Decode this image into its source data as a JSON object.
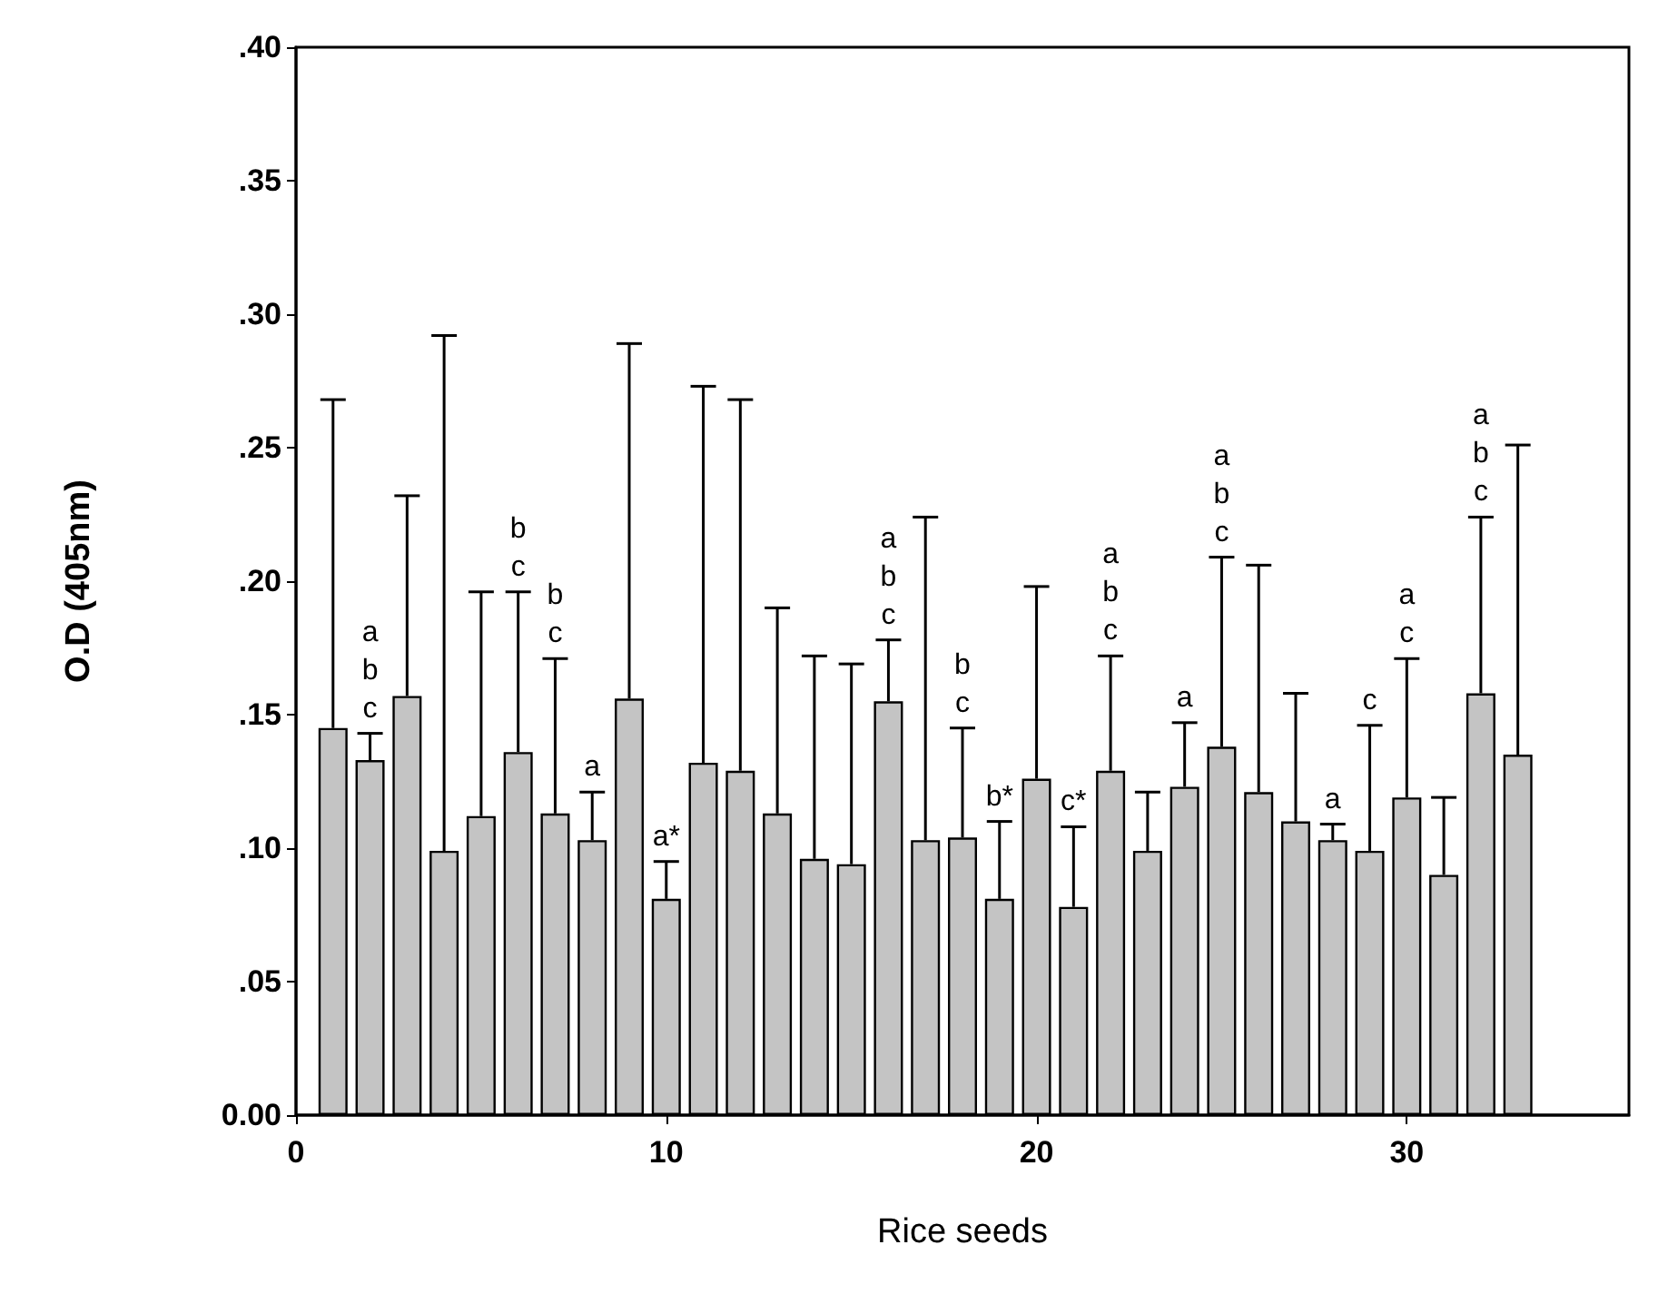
{
  "chart_data": {
    "type": "bar",
    "xlabel": "Rice seeds",
    "ylabel": "O.D (405nm)",
    "x": [
      1,
      2,
      3,
      4,
      5,
      6,
      7,
      8,
      9,
      10,
      11,
      12,
      13,
      14,
      15,
      16,
      17,
      18,
      19,
      20,
      21,
      22,
      23,
      24,
      25,
      26,
      27,
      28,
      29,
      30,
      31,
      32,
      33
    ],
    "values": [
      0.145,
      0.133,
      0.157,
      0.099,
      0.112,
      0.136,
      0.113,
      0.103,
      0.156,
      0.081,
      0.132,
      0.129,
      0.113,
      0.096,
      0.094,
      0.155,
      0.103,
      0.104,
      0.081,
      0.126,
      0.078,
      0.129,
      0.099,
      0.123,
      0.138,
      0.121,
      0.11,
      0.103,
      0.099,
      0.119,
      0.09,
      0.158,
      0.135
    ],
    "errors": [
      [
        0.145,
        0.268
      ],
      [
        0.133,
        0.143
      ],
      [
        0.157,
        0.232
      ],
      [
        0.099,
        0.292
      ],
      [
        0.112,
        0.196
      ],
      [
        0.136,
        0.196
      ],
      [
        0.113,
        0.171
      ],
      [
        0.103,
        0.121
      ],
      [
        0.156,
        0.289
      ],
      [
        0.081,
        0.095
      ],
      [
        0.132,
        0.273
      ],
      [
        0.129,
        0.268
      ],
      [
        0.113,
        0.19
      ],
      [
        0.096,
        0.172
      ],
      [
        0.094,
        0.169
      ],
      [
        0.155,
        0.178
      ],
      [
        0.103,
        0.224
      ],
      [
        0.104,
        0.145
      ],
      [
        0.081,
        0.11
      ],
      [
        0.126,
        0.198
      ],
      [
        0.078,
        0.108
      ],
      [
        0.129,
        0.172
      ],
      [
        0.099,
        0.121
      ],
      [
        0.123,
        0.147
      ],
      [
        0.138,
        0.209
      ],
      [
        0.121,
        0.206
      ],
      [
        0.11,
        0.158
      ],
      [
        0.103,
        0.109
      ],
      [
        0.099,
        0.146
      ],
      [
        0.119,
        0.171
      ],
      [
        0.09,
        0.119
      ],
      [
        0.158,
        0.224
      ],
      [
        0.135,
        0.251
      ]
    ],
    "color": "#c4c4c4",
    "xlim": [
      0,
      36
    ],
    "xticks": [
      0,
      10,
      20,
      30
    ],
    "ylim": [
      0,
      0.4
    ],
    "yticks": [
      {
        "value": 0,
        "label": "0.00"
      },
      {
        "value": 0.05,
        "label": ".05"
      },
      {
        "value": 0.1,
        "label": ".10"
      },
      {
        "value": 0.15,
        "label": ".15"
      },
      {
        "value": 0.2,
        "label": ".20"
      },
      {
        "value": 0.25,
        "label": ".25"
      },
      {
        "value": 0.3,
        "label": ".30"
      },
      {
        "value": 0.35,
        "label": ".35"
      },
      {
        "value": 0.4,
        "label": ".40"
      }
    ],
    "grid": false,
    "annotations": [
      {
        "text": "a\nb\nc",
        "x": 2,
        "y": 0.143
      },
      {
        "text": "b\nc",
        "x": 6,
        "y": 0.196
      },
      {
        "text": "b\nc",
        "x": 7,
        "y": 0.171
      },
      {
        "text": "a",
        "x": 8,
        "y": 0.121
      },
      {
        "text": "a*",
        "x": 10,
        "y": 0.095
      },
      {
        "text": "a\nb\nc",
        "x": 16,
        "y": 0.178
      },
      {
        "text": "b\nc",
        "x": 18,
        "y": 0.145
      },
      {
        "text": "b*",
        "x": 19,
        "y": 0.11
      },
      {
        "text": "c*",
        "x": 21,
        "y": 0.108
      },
      {
        "text": "a\nb\nc",
        "x": 22,
        "y": 0.172
      },
      {
        "text": "a",
        "x": 24,
        "y": 0.147
      },
      {
        "text": "a\nb\nc",
        "x": 25,
        "y": 0.209
      },
      {
        "text": "a",
        "x": 28,
        "y": 0.109
      },
      {
        "text": "c",
        "x": 29,
        "y": 0.146
      },
      {
        "text": "a\nc",
        "x": 30,
        "y": 0.171
      },
      {
        "text": "a\nb\nc",
        "x": 32,
        "y": 0.224
      }
    ]
  }
}
